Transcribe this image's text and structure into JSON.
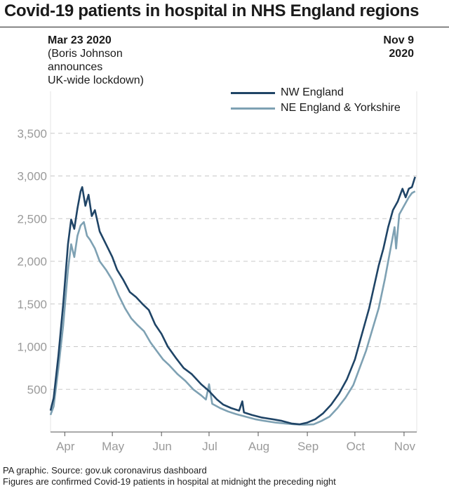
{
  "title": "Covid-19 patients in hospital in NHS England regions",
  "annotations": {
    "left_date": "Mar 23 2020",
    "left_lines": [
      "(Boris Johnson",
      "announces",
      "UK-wide lockdown)"
    ],
    "right_lines": [
      "Nov 9",
      "2020"
    ]
  },
  "footer": {
    "source": "PA graphic. Source: gov.uk coronavirus dashboard",
    "note": "Figures are confirmed Covid-19 patients in hospital at midnight the preceding night"
  },
  "colors": {
    "nw": "#1f4466",
    "ne": "#7ea1b3",
    "grid": "#c8c8c8",
    "axis": "#555555",
    "tick_label": "#9a9a9a"
  },
  "chart_data": {
    "type": "line",
    "x_start": "2020-03-23",
    "x_end": "2020-11-09",
    "yticks": [
      500,
      1000,
      1500,
      2000,
      2500,
      3000,
      3500
    ],
    "ytick_labels": [
      "500",
      "1,000",
      "1,500",
      "2,000",
      "2,500",
      "3,000",
      "3,500"
    ],
    "xticks": [
      {
        "date": "2020-04-01",
        "label": "Apr"
      },
      {
        "date": "2020-05-01",
        "label": "May"
      },
      {
        "date": "2020-06-01",
        "label": "Jun"
      },
      {
        "date": "2020-07-01",
        "label": "Jul"
      },
      {
        "date": "2020-08-01",
        "label": "Aug"
      },
      {
        "date": "2020-09-01",
        "label": "Sep"
      },
      {
        "date": "2020-10-01",
        "label": "Oct"
      },
      {
        "date": "2020-11-01",
        "label": "Nov"
      }
    ],
    "grid": "horizontal dashed",
    "legend_position": "top-right",
    "series": [
      {
        "name": "NW England",
        "points": [
          [
            "2020-03-23",
            250
          ],
          [
            "2020-03-25",
            400
          ],
          [
            "2020-03-28",
            900
          ],
          [
            "2020-03-31",
            1500
          ],
          [
            "2020-04-03",
            2200
          ],
          [
            "2020-04-05",
            2490
          ],
          [
            "2020-04-07",
            2380
          ],
          [
            "2020-04-09",
            2620
          ],
          [
            "2020-04-11",
            2820
          ],
          [
            "2020-04-12",
            2870
          ],
          [
            "2020-04-14",
            2650
          ],
          [
            "2020-04-16",
            2780
          ],
          [
            "2020-04-18",
            2530
          ],
          [
            "2020-04-20",
            2600
          ],
          [
            "2020-04-23",
            2350
          ],
          [
            "2020-04-27",
            2200
          ],
          [
            "2020-05-01",
            2050
          ],
          [
            "2020-05-04",
            1900
          ],
          [
            "2020-05-08",
            1780
          ],
          [
            "2020-05-12",
            1640
          ],
          [
            "2020-05-16",
            1580
          ],
          [
            "2020-05-20",
            1500
          ],
          [
            "2020-05-24",
            1430
          ],
          [
            "2020-05-28",
            1260
          ],
          [
            "2020-06-01",
            1150
          ],
          [
            "2020-06-05",
            1000
          ],
          [
            "2020-06-10",
            870
          ],
          [
            "2020-06-15",
            750
          ],
          [
            "2020-06-20",
            680
          ],
          [
            "2020-06-26",
            560
          ],
          [
            "2020-07-01",
            480
          ],
          [
            "2020-07-06",
            380
          ],
          [
            "2020-07-10",
            320
          ],
          [
            "2020-07-15",
            280
          ],
          [
            "2020-07-20",
            250
          ],
          [
            "2020-07-22",
            360
          ],
          [
            "2020-07-23",
            230
          ],
          [
            "2020-07-28",
            200
          ],
          [
            "2020-08-03",
            170
          ],
          [
            "2020-08-10",
            150
          ],
          [
            "2020-08-16",
            130
          ],
          [
            "2020-08-22",
            100
          ],
          [
            "2020-08-27",
            90
          ],
          [
            "2020-09-01",
            110
          ],
          [
            "2020-09-06",
            150
          ],
          [
            "2020-09-11",
            220
          ],
          [
            "2020-09-16",
            320
          ],
          [
            "2020-09-21",
            450
          ],
          [
            "2020-09-26",
            620
          ],
          [
            "2020-10-01",
            850
          ],
          [
            "2020-10-04",
            1050
          ],
          [
            "2020-10-07",
            1250
          ],
          [
            "2020-10-10",
            1450
          ],
          [
            "2020-10-13",
            1700
          ],
          [
            "2020-10-16",
            1950
          ],
          [
            "2020-10-19",
            2150
          ],
          [
            "2020-10-22",
            2400
          ],
          [
            "2020-10-25",
            2600
          ],
          [
            "2020-10-28",
            2700
          ],
          [
            "2020-10-31",
            2850
          ],
          [
            "2020-11-02",
            2750
          ],
          [
            "2020-11-04",
            2850
          ],
          [
            "2020-11-06",
            2870
          ],
          [
            "2020-11-08",
            2990
          ]
        ]
      },
      {
        "name": "NE England & Yorkshire",
        "points": [
          [
            "2020-03-23",
            200
          ],
          [
            "2020-03-25",
            300
          ],
          [
            "2020-03-28",
            750
          ],
          [
            "2020-03-31",
            1250
          ],
          [
            "2020-04-03",
            1900
          ],
          [
            "2020-04-05",
            2200
          ],
          [
            "2020-04-07",
            2050
          ],
          [
            "2020-04-09",
            2300
          ],
          [
            "2020-04-11",
            2420
          ],
          [
            "2020-04-13",
            2460
          ],
          [
            "2020-04-15",
            2300
          ],
          [
            "2020-04-17",
            2250
          ],
          [
            "2020-04-20",
            2150
          ],
          [
            "2020-04-23",
            2000
          ],
          [
            "2020-04-27",
            1900
          ],
          [
            "2020-05-01",
            1780
          ],
          [
            "2020-05-05",
            1600
          ],
          [
            "2020-05-09",
            1450
          ],
          [
            "2020-05-13",
            1330
          ],
          [
            "2020-05-17",
            1250
          ],
          [
            "2020-05-21",
            1180
          ],
          [
            "2020-05-25",
            1050
          ],
          [
            "2020-05-29",
            950
          ],
          [
            "2020-06-02",
            850
          ],
          [
            "2020-06-06",
            780
          ],
          [
            "2020-06-11",
            680
          ],
          [
            "2020-06-16",
            600
          ],
          [
            "2020-06-21",
            500
          ],
          [
            "2020-06-26",
            430
          ],
          [
            "2020-06-29",
            380
          ],
          [
            "2020-07-01",
            560
          ],
          [
            "2020-07-03",
            330
          ],
          [
            "2020-07-08",
            280
          ],
          [
            "2020-07-13",
            240
          ],
          [
            "2020-07-18",
            210
          ],
          [
            "2020-07-24",
            180
          ],
          [
            "2020-07-30",
            150
          ],
          [
            "2020-08-05",
            130
          ],
          [
            "2020-08-12",
            110
          ],
          [
            "2020-08-18",
            100
          ],
          [
            "2020-08-24",
            90
          ],
          [
            "2020-08-30",
            85
          ],
          [
            "2020-09-05",
            90
          ],
          [
            "2020-09-10",
            130
          ],
          [
            "2020-09-15",
            180
          ],
          [
            "2020-09-20",
            280
          ],
          [
            "2020-09-25",
            400
          ],
          [
            "2020-09-30",
            550
          ],
          [
            "2020-10-04",
            750
          ],
          [
            "2020-10-08",
            950
          ],
          [
            "2020-10-12",
            1200
          ],
          [
            "2020-10-16",
            1450
          ],
          [
            "2020-10-20",
            1800
          ],
          [
            "2020-10-23",
            2100
          ],
          [
            "2020-10-26",
            2400
          ],
          [
            "2020-10-27",
            2150
          ],
          [
            "2020-10-29",
            2550
          ],
          [
            "2020-11-01",
            2650
          ],
          [
            "2020-11-04",
            2750
          ],
          [
            "2020-11-06",
            2800
          ],
          [
            "2020-11-08",
            2820
          ]
        ]
      }
    ]
  }
}
